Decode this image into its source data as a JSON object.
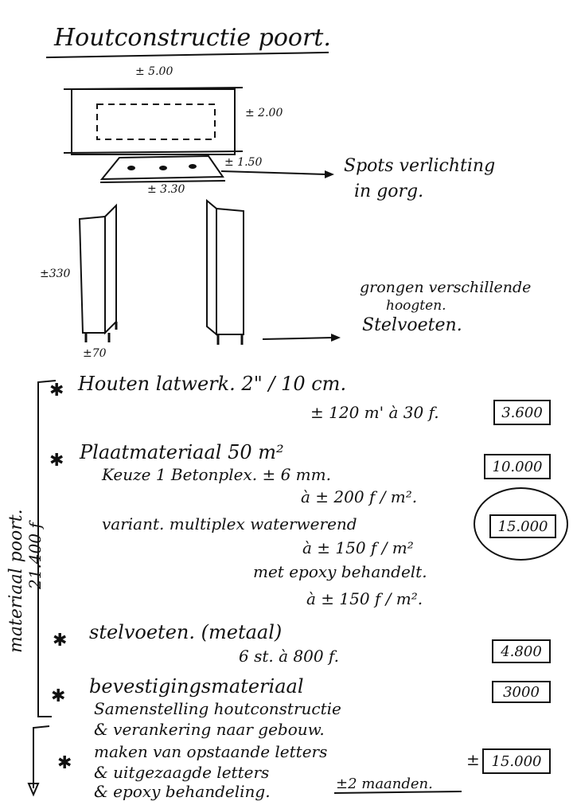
{
  "title": "Houtconstructie poort.",
  "sketch": {
    "dim_width": "± 5.00",
    "dim_height": "± 2.00",
    "dim_lamp_height": "± 1.50",
    "dim_lamp_width": "± 3.30",
    "dim_pillar_height": "±330",
    "dim_pillar_width": "±70",
    "note_spots": "Spots verlichting",
    "note_spots_2": "in gorg.",
    "note_feet_1": "grongen verschillende",
    "note_feet_2": "hoogten.",
    "note_feet_3": "Stelvoeten."
  },
  "side_note": {
    "label": "materiaal poort.",
    "total": "21.400 f"
  },
  "items": [
    {
      "lines": [
        "Houten latwerk.  2\" / 10 cm.",
        "± 120 m' à 30 f."
      ],
      "amount": "3.600"
    },
    {
      "lines": [
        "Plaatmateriaal        50 m²",
        "Keuze 1   Betonplex. ± 6 mm.",
        "à ± 200 f / m².",
        "variant.  multiplex waterwerend",
        "à ± 150 f / m²",
        "met epoxy behandelt.",
        "à ± 150 f / m²."
      ],
      "amount": "10.000",
      "amount_variant": "15.000"
    },
    {
      "lines": [
        "stelvoeten. (metaal)",
        "6 st. à 800 f."
      ],
      "amount": "4.800"
    },
    {
      "lines": [
        "bevestigingsmateriaal",
        "Samenstelling houtconstructie",
        "& verankering naar gebouw.",
        "maken van opstaande letters",
        "& uitgezaagde letters",
        "& epoxy behandeling."
      ],
      "amount": "3000",
      "amount_extra": "15.000",
      "amount_extra_prefix": "±",
      "labor_note": "±2 maanden."
    }
  ]
}
